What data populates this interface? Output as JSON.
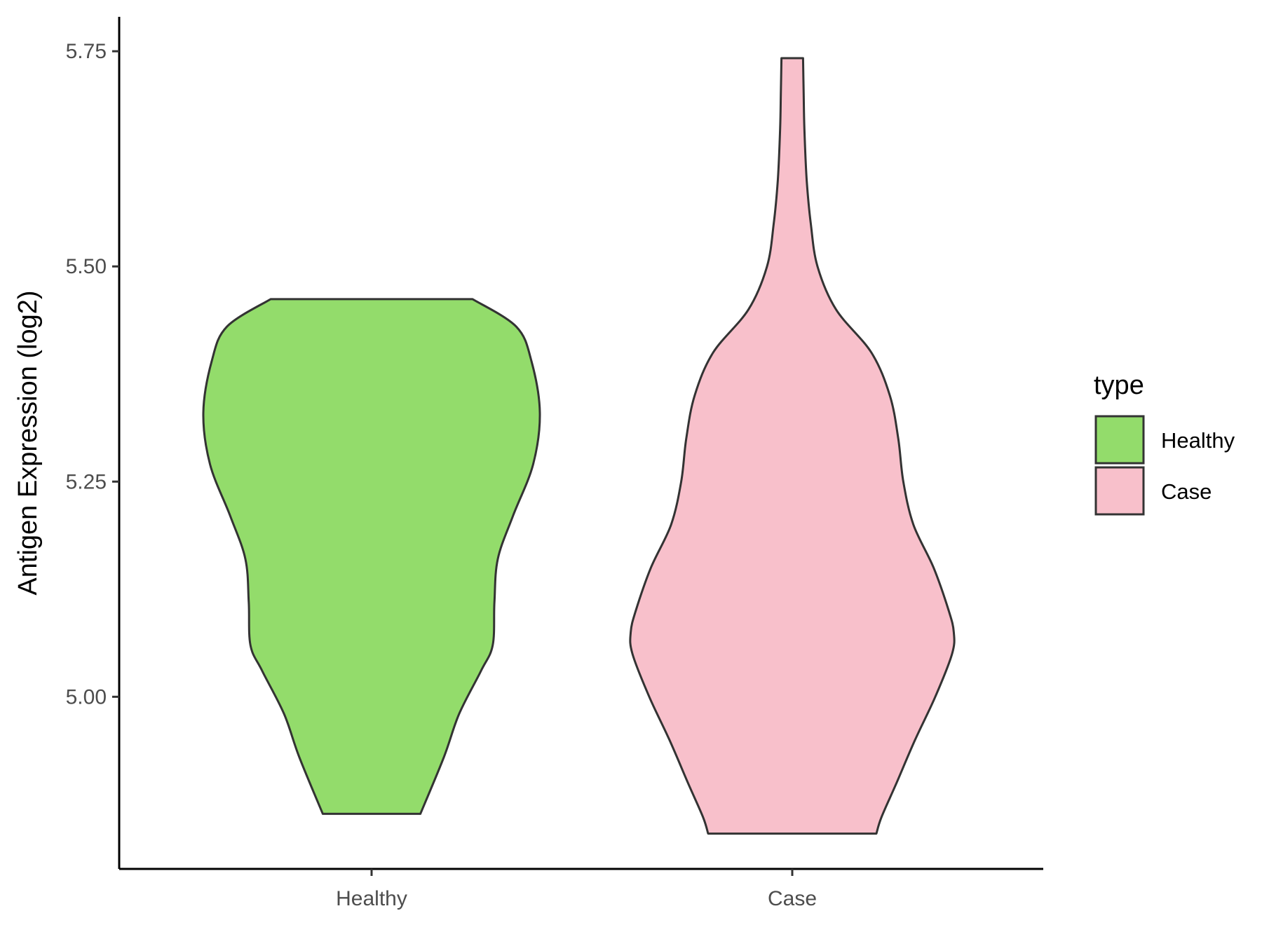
{
  "chart_data": {
    "type": "violin",
    "title": "",
    "xlabel": "",
    "ylabel": "Antigen Expression (log2)",
    "ylim": [
      4.8,
      5.79
    ],
    "yticks": [
      5.0,
      5.25,
      5.5,
      5.75
    ],
    "ytick_labels": [
      "5.00",
      "5.25",
      "5.50",
      "5.75"
    ],
    "categories": [
      "Healthy",
      "Case"
    ],
    "legend": {
      "title": "type",
      "position": "right",
      "entries": [
        "Healthy",
        "Case"
      ]
    },
    "grid": false,
    "series": [
      {
        "name": "Healthy",
        "color": "#93dc6b",
        "min": 4.864,
        "max": 5.462,
        "density_profile": [
          [
            5.462,
            0.6
          ],
          [
            5.43,
            0.86
          ],
          [
            5.39,
            0.95
          ],
          [
            5.33,
            1.0
          ],
          [
            5.27,
            0.96
          ],
          [
            5.21,
            0.84
          ],
          [
            5.16,
            0.75
          ],
          [
            5.11,
            0.73
          ],
          [
            5.06,
            0.72
          ],
          [
            5.03,
            0.65
          ],
          [
            4.98,
            0.52
          ],
          [
            4.93,
            0.43
          ],
          [
            4.864,
            0.29
          ]
        ]
      },
      {
        "name": "Case",
        "color": "#f8c0cb",
        "min": 4.841,
        "max": 5.742,
        "density_profile": [
          [
            5.742,
            0.064
          ],
          [
            5.7,
            0.068
          ],
          [
            5.66,
            0.072
          ],
          [
            5.6,
            0.086
          ],
          [
            5.55,
            0.11
          ],
          [
            5.5,
            0.15
          ],
          [
            5.45,
            0.26
          ],
          [
            5.4,
            0.47
          ],
          [
            5.35,
            0.58
          ],
          [
            5.3,
            0.63
          ],
          [
            5.25,
            0.66
          ],
          [
            5.2,
            0.72
          ],
          [
            5.15,
            0.84
          ],
          [
            5.1,
            0.93
          ],
          [
            5.075,
            0.96
          ],
          [
            5.05,
            0.95
          ],
          [
            5.0,
            0.85
          ],
          [
            4.95,
            0.73
          ],
          [
            4.9,
            0.62
          ],
          [
            4.86,
            0.53
          ],
          [
            4.841,
            0.5
          ]
        ]
      }
    ]
  }
}
